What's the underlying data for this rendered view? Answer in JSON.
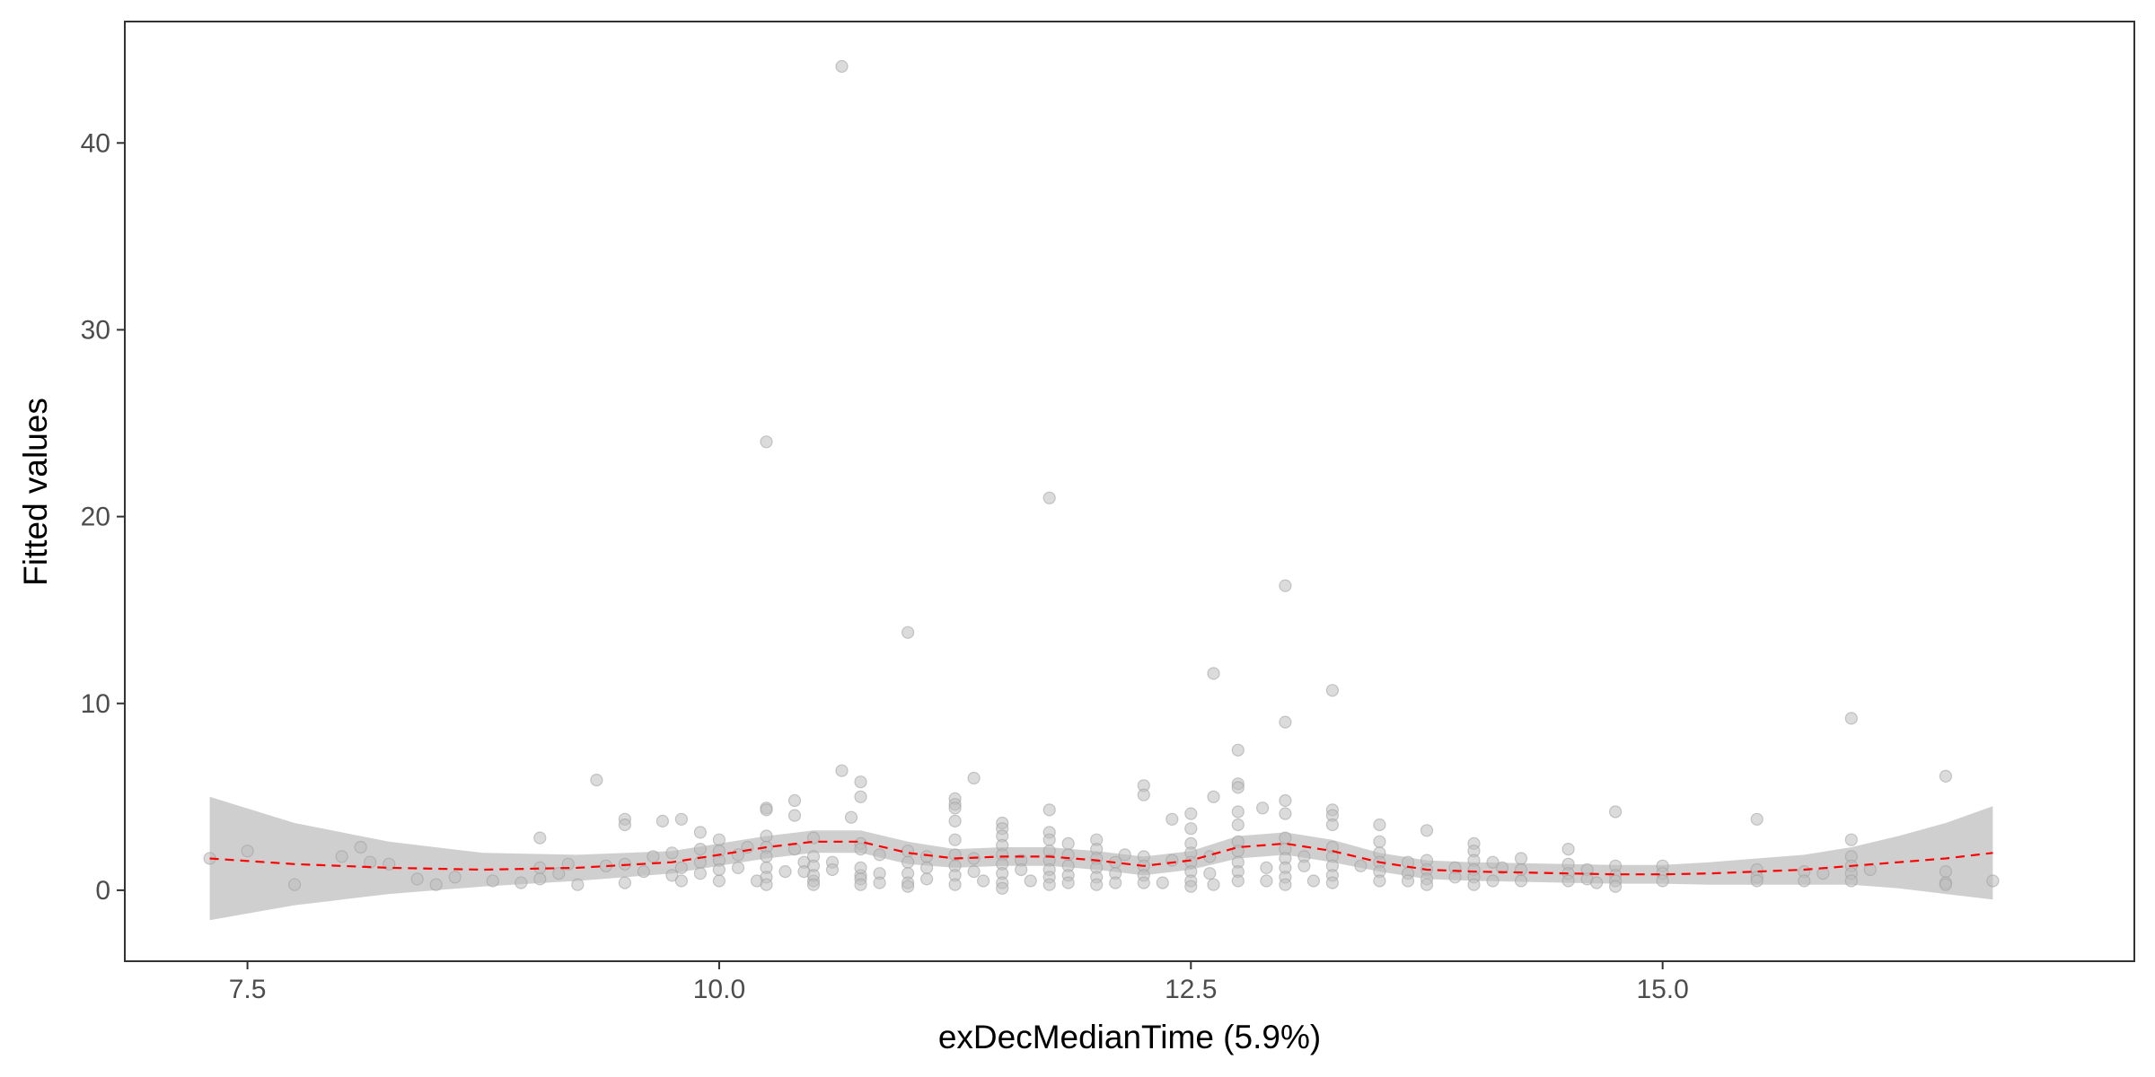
{
  "chart_data": {
    "type": "scatter",
    "xlabel": "exDecMedianTime  (5.9%)",
    "ylabel": "Fitted values",
    "xlim": [
      6.85,
      17.5
    ],
    "ylim": [
      -3.8,
      46.5
    ],
    "x_ticks": [
      7.5,
      10.0,
      12.5,
      15.0
    ],
    "x_tick_labels": [
      "7.5",
      "10.0",
      "12.5",
      "15.0"
    ],
    "y_ticks": [
      0,
      10,
      20,
      30,
      40
    ],
    "y_tick_labels": [
      "0",
      "10",
      "20",
      "30",
      "40"
    ],
    "grid": false,
    "legend": "none",
    "point_color": "#bdbdbd",
    "smooth_color": "#ff0000",
    "band_color": "#cccccc",
    "points": [
      [
        7.3,
        1.7
      ],
      [
        7.5,
        2.1
      ],
      [
        7.75,
        0.3
      ],
      [
        8.0,
        1.8
      ],
      [
        8.1,
        2.3
      ],
      [
        8.15,
        1.5
      ],
      [
        8.25,
        1.4
      ],
      [
        8.4,
        0.6
      ],
      [
        8.5,
        0.3
      ],
      [
        8.6,
        0.7
      ],
      [
        8.8,
        0.5
      ],
      [
        8.95,
        0.4
      ],
      [
        9.05,
        2.8
      ],
      [
        9.05,
        1.2
      ],
      [
        9.05,
        0.6
      ],
      [
        9.25,
        0.3
      ],
      [
        9.15,
        0.9
      ],
      [
        9.2,
        1.4
      ],
      [
        9.35,
        5.9
      ],
      [
        9.4,
        1.3
      ],
      [
        9.5,
        3.8
      ],
      [
        9.5,
        3.5
      ],
      [
        9.5,
        1.4
      ],
      [
        9.5,
        0.4
      ],
      [
        9.6,
        1.0
      ],
      [
        9.65,
        1.8
      ],
      [
        9.7,
        3.7
      ],
      [
        9.75,
        2.0
      ],
      [
        9.75,
        0.8
      ],
      [
        9.8,
        3.8
      ],
      [
        9.8,
        1.2
      ],
      [
        9.8,
        0.5
      ],
      [
        9.9,
        3.1
      ],
      [
        9.9,
        2.2
      ],
      [
        9.9,
        1.5
      ],
      [
        9.9,
        0.9
      ],
      [
        10.0,
        2.7
      ],
      [
        10.0,
        2.1
      ],
      [
        10.0,
        1.6
      ],
      [
        10.0,
        1.1
      ],
      [
        10.0,
        0.5
      ],
      [
        10.1,
        1.9
      ],
      [
        10.1,
        1.2
      ],
      [
        10.15,
        2.3
      ],
      [
        10.2,
        0.5
      ],
      [
        10.25,
        24.0
      ],
      [
        10.25,
        4.4
      ],
      [
        10.25,
        4.3
      ],
      [
        10.25,
        2.9
      ],
      [
        10.25,
        2.3
      ],
      [
        10.25,
        1.8
      ],
      [
        10.25,
        1.2
      ],
      [
        10.25,
        0.7
      ],
      [
        10.25,
        0.3
      ],
      [
        10.35,
        1.0
      ],
      [
        10.4,
        4.8
      ],
      [
        10.4,
        4.0
      ],
      [
        10.4,
        2.2
      ],
      [
        10.45,
        1.5
      ],
      [
        10.45,
        1.0
      ],
      [
        10.5,
        0.5
      ],
      [
        10.5,
        2.8
      ],
      [
        10.5,
        1.8
      ],
      [
        10.5,
        1.3
      ],
      [
        10.5,
        0.8
      ],
      [
        10.5,
        0.3
      ],
      [
        10.6,
        1.5
      ],
      [
        10.6,
        1.1
      ],
      [
        10.65,
        44.1
      ],
      [
        10.65,
        6.4
      ],
      [
        10.7,
        3.9
      ],
      [
        10.75,
        0.8
      ],
      [
        10.75,
        5.8
      ],
      [
        10.75,
        5.0
      ],
      [
        10.75,
        2.5
      ],
      [
        10.75,
        2.2
      ],
      [
        10.75,
        1.2
      ],
      [
        10.75,
        0.6
      ],
      [
        10.75,
        0.3
      ],
      [
        10.85,
        1.9
      ],
      [
        10.85,
        0.9
      ],
      [
        10.85,
        0.4
      ],
      [
        11.0,
        13.8
      ],
      [
        11.0,
        2.1
      ],
      [
        11.0,
        1.5
      ],
      [
        11.0,
        0.9
      ],
      [
        11.0,
        0.4
      ],
      [
        11.0,
        0.2
      ],
      [
        11.1,
        1.8
      ],
      [
        11.1,
        1.2
      ],
      [
        11.1,
        0.6
      ],
      [
        11.25,
        4.9
      ],
      [
        11.25,
        4.6
      ],
      [
        11.25,
        4.4
      ],
      [
        11.25,
        3.7
      ],
      [
        11.25,
        2.7
      ],
      [
        11.25,
        1.9
      ],
      [
        11.25,
        1.3
      ],
      [
        11.25,
        0.8
      ],
      [
        11.25,
        0.3
      ],
      [
        11.35,
        6.0
      ],
      [
        11.35,
        1.7
      ],
      [
        11.35,
        1.0
      ],
      [
        11.4,
        0.5
      ],
      [
        11.5,
        3.6
      ],
      [
        11.5,
        3.3
      ],
      [
        11.5,
        2.9
      ],
      [
        11.5,
        2.4
      ],
      [
        11.5,
        1.9
      ],
      [
        11.5,
        1.4
      ],
      [
        11.5,
        0.9
      ],
      [
        11.5,
        0.4
      ],
      [
        11.5,
        0.1
      ],
      [
        11.6,
        1.6
      ],
      [
        11.6,
        1.1
      ],
      [
        11.65,
        0.5
      ],
      [
        11.75,
        21.0
      ],
      [
        11.75,
        4.3
      ],
      [
        11.75,
        3.1
      ],
      [
        11.75,
        2.7
      ],
      [
        11.75,
        2.1
      ],
      [
        11.75,
        1.6
      ],
      [
        11.75,
        1.1
      ],
      [
        11.75,
        0.7
      ],
      [
        11.75,
        0.3
      ],
      [
        11.85,
        2.5
      ],
      [
        11.85,
        1.9
      ],
      [
        11.85,
        1.3
      ],
      [
        11.85,
        0.8
      ],
      [
        11.85,
        0.4
      ],
      [
        12.0,
        2.7
      ],
      [
        12.0,
        2.2
      ],
      [
        12.0,
        1.7
      ],
      [
        12.0,
        1.2
      ],
      [
        12.0,
        0.7
      ],
      [
        12.0,
        0.3
      ],
      [
        12.1,
        1.5
      ],
      [
        12.1,
        0.9
      ],
      [
        12.1,
        0.4
      ],
      [
        12.15,
        1.9
      ],
      [
        12.25,
        5.6
      ],
      [
        12.25,
        5.1
      ],
      [
        12.25,
        1.8
      ],
      [
        12.25,
        1.3
      ],
      [
        12.25,
        0.8
      ],
      [
        12.25,
        0.4
      ],
      [
        12.35,
        0.4
      ],
      [
        12.4,
        3.8
      ],
      [
        12.4,
        1.6
      ],
      [
        12.5,
        4.1
      ],
      [
        12.5,
        3.3
      ],
      [
        12.5,
        2.5
      ],
      [
        12.5,
        2.0
      ],
      [
        12.5,
        1.5
      ],
      [
        12.5,
        1.0
      ],
      [
        12.5,
        0.5
      ],
      [
        12.5,
        0.2
      ],
      [
        12.6,
        1.8
      ],
      [
        12.6,
        0.9
      ],
      [
        12.62,
        11.6
      ],
      [
        12.62,
        5.0
      ],
      [
        12.62,
        0.3
      ],
      [
        12.75,
        7.5
      ],
      [
        12.75,
        5.7
      ],
      [
        12.75,
        5.5
      ],
      [
        12.75,
        4.2
      ],
      [
        12.75,
        3.5
      ],
      [
        12.75,
        2.6
      ],
      [
        12.75,
        2.1
      ],
      [
        12.75,
        1.5
      ],
      [
        12.75,
        1.0
      ],
      [
        12.75,
        0.5
      ],
      [
        12.88,
        4.4
      ],
      [
        12.9,
        1.2
      ],
      [
        12.9,
        0.5
      ],
      [
        13.0,
        16.3
      ],
      [
        13.0,
        9.0
      ],
      [
        13.0,
        4.8
      ],
      [
        13.0,
        4.1
      ],
      [
        13.0,
        2.8
      ],
      [
        13.0,
        2.2
      ],
      [
        13.0,
        1.7
      ],
      [
        13.0,
        1.2
      ],
      [
        13.0,
        0.7
      ],
      [
        13.0,
        0.3
      ],
      [
        13.1,
        1.8
      ],
      [
        13.1,
        1.3
      ],
      [
        13.15,
        0.5
      ],
      [
        13.25,
        10.7
      ],
      [
        13.25,
        4.3
      ],
      [
        13.25,
        4.0
      ],
      [
        13.25,
        3.5
      ],
      [
        13.25,
        2.3
      ],
      [
        13.25,
        1.8
      ],
      [
        13.25,
        1.3
      ],
      [
        13.25,
        0.8
      ],
      [
        13.25,
        0.4
      ],
      [
        13.4,
        1.3
      ],
      [
        13.5,
        3.5
      ],
      [
        13.5,
        2.6
      ],
      [
        13.5,
        2.0
      ],
      [
        13.5,
        1.5
      ],
      [
        13.5,
        1.0
      ],
      [
        13.5,
        0.5
      ],
      [
        13.65,
        1.5
      ],
      [
        13.65,
        0.9
      ],
      [
        13.65,
        0.5
      ],
      [
        13.75,
        3.2
      ],
      [
        13.75,
        1.6
      ],
      [
        13.75,
        1.1
      ],
      [
        13.75,
        0.6
      ],
      [
        13.75,
        0.3
      ],
      [
        13.9,
        1.2
      ],
      [
        13.9,
        0.7
      ],
      [
        14.0,
        2.5
      ],
      [
        14.0,
        2.1
      ],
      [
        14.0,
        1.6
      ],
      [
        14.0,
        1.1
      ],
      [
        14.0,
        0.7
      ],
      [
        14.0,
        0.3
      ],
      [
        14.1,
        1.5
      ],
      [
        14.1,
        0.5
      ],
      [
        14.15,
        1.2
      ],
      [
        14.25,
        1.7
      ],
      [
        14.25,
        1.1
      ],
      [
        14.25,
        0.5
      ],
      [
        14.5,
        2.2
      ],
      [
        14.5,
        1.4
      ],
      [
        14.5,
        0.9
      ],
      [
        14.5,
        0.5
      ],
      [
        14.6,
        1.1
      ],
      [
        14.6,
        0.6
      ],
      [
        14.65,
        0.4
      ],
      [
        14.75,
        4.2
      ],
      [
        14.75,
        1.3
      ],
      [
        14.75,
        0.8
      ],
      [
        14.75,
        0.5
      ],
      [
        14.75,
        0.2
      ],
      [
        15.0,
        1.3
      ],
      [
        15.0,
        0.9
      ],
      [
        15.0,
        0.5
      ],
      [
        15.5,
        3.8
      ],
      [
        15.5,
        1.1
      ],
      [
        15.5,
        0.7
      ],
      [
        15.5,
        0.5
      ],
      [
        15.75,
        1.0
      ],
      [
        15.75,
        0.5
      ],
      [
        15.85,
        0.9
      ],
      [
        16.0,
        9.2
      ],
      [
        16.0,
        2.7
      ],
      [
        16.0,
        1.8
      ],
      [
        16.0,
        1.3
      ],
      [
        16.0,
        0.9
      ],
      [
        16.0,
        0.5
      ],
      [
        16.1,
        1.1
      ],
      [
        16.5,
        6.1
      ],
      [
        16.5,
        1.0
      ],
      [
        16.5,
        0.4
      ],
      [
        16.5,
        0.3
      ],
      [
        16.75,
        0.5
      ]
    ],
    "smooth": {
      "x": [
        7.3,
        7.75,
        8.25,
        8.75,
        9.25,
        9.75,
        10.0,
        10.25,
        10.5,
        10.75,
        11.0,
        11.25,
        11.5,
        11.75,
        12.0,
        12.25,
        12.5,
        12.75,
        13.0,
        13.25,
        13.5,
        13.75,
        14.0,
        14.25,
        14.5,
        14.75,
        15.0,
        15.25,
        15.5,
        15.75,
        16.0,
        16.25,
        16.5,
        16.75
      ],
      "y": [
        1.7,
        1.4,
        1.2,
        1.1,
        1.2,
        1.5,
        1.9,
        2.3,
        2.6,
        2.6,
        2.0,
        1.7,
        1.8,
        1.8,
        1.6,
        1.3,
        1.6,
        2.3,
        2.5,
        2.1,
        1.5,
        1.1,
        1.0,
        0.95,
        0.9,
        0.85,
        0.85,
        0.9,
        1.0,
        1.1,
        1.3,
        1.5,
        1.7,
        2.0
      ],
      "lower": [
        -1.6,
        -0.8,
        -0.2,
        0.2,
        0.5,
        0.9,
        1.3,
        1.7,
        2.0,
        2.0,
        1.4,
        1.2,
        1.3,
        1.3,
        1.1,
        0.8,
        1.1,
        1.7,
        1.9,
        1.5,
        1.0,
        0.6,
        0.5,
        0.45,
        0.4,
        0.35,
        0.35,
        0.3,
        0.3,
        0.3,
        0.3,
        0.1,
        -0.2,
        -0.5
      ],
      "upper": [
        5.0,
        3.6,
        2.6,
        2.0,
        1.9,
        2.1,
        2.5,
        2.9,
        3.2,
        3.2,
        2.6,
        2.2,
        2.3,
        2.3,
        2.1,
        1.8,
        2.1,
        2.9,
        3.1,
        2.7,
        2.0,
        1.6,
        1.5,
        1.45,
        1.4,
        1.35,
        1.35,
        1.5,
        1.7,
        1.9,
        2.3,
        2.9,
        3.6,
        4.5
      ]
    }
  }
}
